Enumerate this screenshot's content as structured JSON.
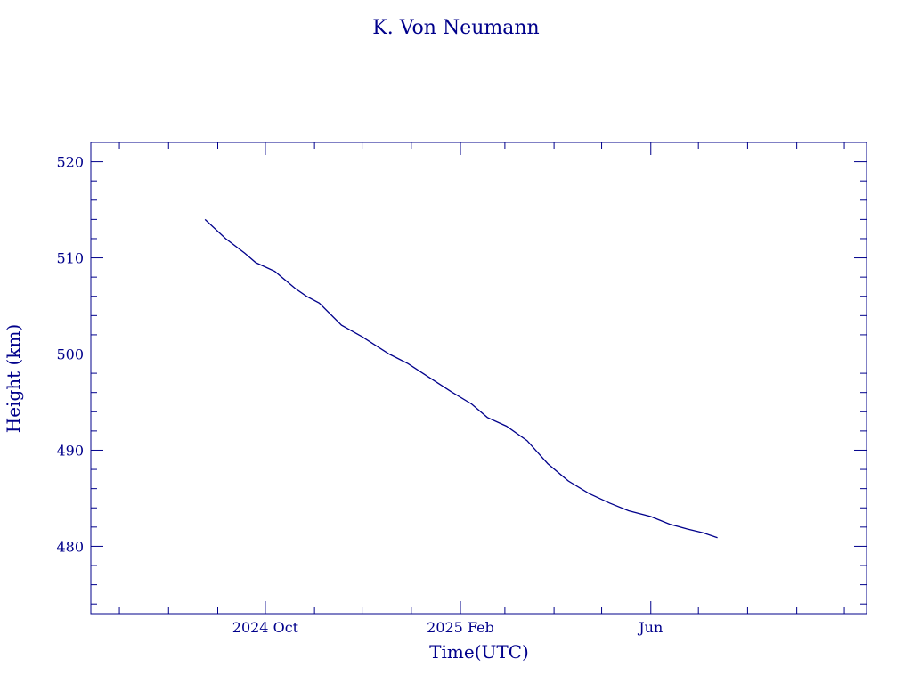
{
  "chart_data": {
    "type": "line",
    "title": "K. Von Neumann",
    "xlabel": "Time(UTC)",
    "ylabel": "Height (km)",
    "xlim": [
      "2024-06-13",
      "2025-10-15"
    ],
    "ylim": [
      473,
      522
    ],
    "x_ticks": [
      {
        "date": "2024-10-01",
        "label": "2024 Oct"
      },
      {
        "date": "2025-02-01",
        "label": "2025 Feb"
      },
      {
        "date": "2025-06-01",
        "label": "Jun"
      }
    ],
    "y_ticks": [
      480,
      490,
      500,
      510,
      520
    ],
    "grid": false,
    "color": "#00008b",
    "series": [
      {
        "x": [
          "2024-08-24",
          "2024-09-06",
          "2024-09-18",
          "2024-09-25",
          "2024-10-07",
          "2024-10-20",
          "2024-10-27",
          "2024-11-04",
          "2024-11-18",
          "2024-12-01",
          "2024-12-18",
          "2024-12-30",
          "2025-01-12",
          "2025-01-26",
          "2025-02-08",
          "2025-02-18",
          "2025-03-02",
          "2025-03-15",
          "2025-03-28",
          "2025-04-10",
          "2025-04-23",
          "2025-05-06",
          "2025-05-18",
          "2025-06-01",
          "2025-06-13",
          "2025-06-24",
          "2025-07-04",
          "2025-07-13"
        ],
        "y": [
          514,
          512,
          510.5,
          509.5,
          508.6,
          506.8,
          506,
          505.3,
          503,
          501.8,
          500.0,
          499.0,
          497.6,
          496.1,
          494.8,
          493.4,
          492.5,
          491.0,
          488.6,
          486.8,
          485.5,
          484.5,
          483.7,
          483.1,
          482.3,
          481.8,
          481.4,
          480.9
        ]
      }
    ]
  }
}
